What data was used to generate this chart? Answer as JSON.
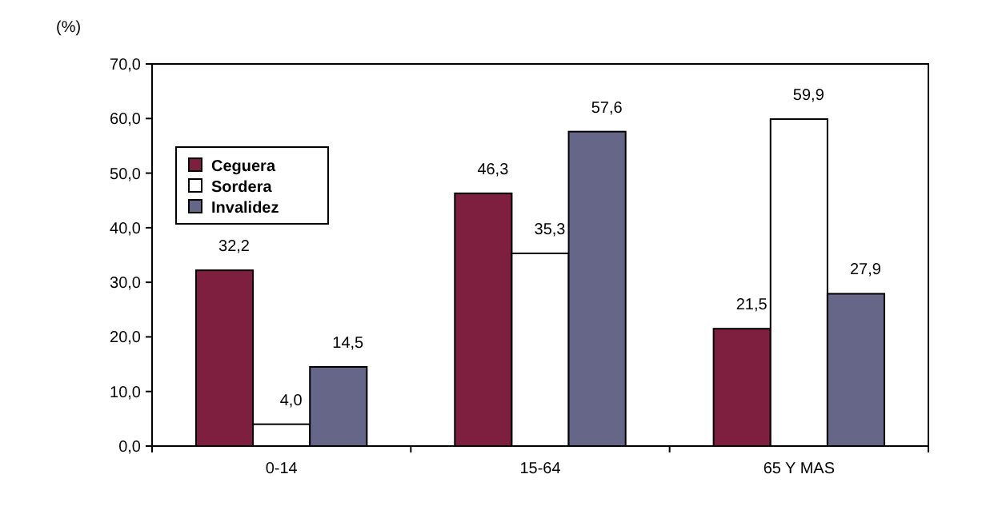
{
  "chart_data": {
    "type": "bar",
    "ylabel": "(%)",
    "categories": [
      "0-14",
      "15-64",
      "65 Y MAS"
    ],
    "series": [
      {
        "name": "Ceguera",
        "color": "#7f1f3f",
        "values": [
          32.2,
          46.3,
          21.5
        ],
        "value_labels": [
          "32,2",
          "46,3",
          "21,5"
        ]
      },
      {
        "name": "Sordera",
        "color": "#ffffff",
        "values": [
          4.0,
          35.3,
          59.9
        ],
        "value_labels": [
          "4,0",
          "35,3",
          "59,9"
        ]
      },
      {
        "name": "Invalidez",
        "color": "#666688",
        "values": [
          14.5,
          57.6,
          27.9
        ],
        "value_labels": [
          "14,5",
          "57,6",
          "27,9"
        ]
      }
    ],
    "ylim": [
      0,
      70
    ],
    "yticks": [
      {
        "value": 0,
        "label": "0,0"
      },
      {
        "value": 10,
        "label": "10,0"
      },
      {
        "value": 20,
        "label": "20,0"
      },
      {
        "value": 30,
        "label": "30,0"
      },
      {
        "value": 40,
        "label": "40,0"
      },
      {
        "value": 50,
        "label": "50,0"
      },
      {
        "value": 60,
        "label": "60,0"
      },
      {
        "value": 70,
        "label": "70,0"
      }
    ],
    "grid": false,
    "legend": "top left"
  }
}
